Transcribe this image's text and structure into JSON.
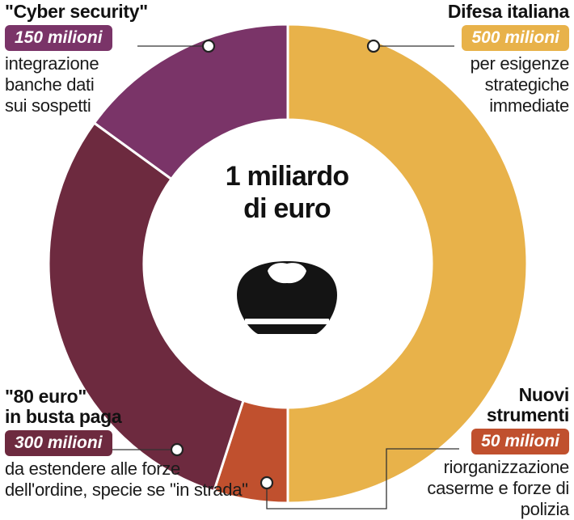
{
  "center": {
    "title_line1": "1 miliardo",
    "title_line2": "di euro",
    "icon": "police-cap-icon"
  },
  "chart_data": {
    "type": "pie",
    "style": "donut",
    "total_label": "1 miliardo di euro",
    "slices": [
      {
        "label": "Difesa italiana",
        "value": 500,
        "value_label": "500 milioni",
        "description": "per esigenze strategiche immediate",
        "color": "#e8b24a"
      },
      {
        "label": "Nuovi strumenti",
        "value": 50,
        "value_label": "50 milioni",
        "description": "riorganizzazione caserme e forze di polizia",
        "color": "#c0502e"
      },
      {
        "label": "\"80 euro\" in busta paga",
        "value": 300,
        "value_label": "300 milioni",
        "description": "da estendere alle forze dell'ordine, specie se \"in strada\"",
        "color": "#6d2a3f"
      },
      {
        "label": "\"Cyber security\"",
        "value": 150,
        "value_label": "150 milioni",
        "description": "integrazione banche dati sui sospetti",
        "color": "#7a3468"
      }
    ]
  },
  "callouts": {
    "cyber": {
      "title": "\"Cyber security\"",
      "badge": "150 milioni",
      "desc1": "integrazione",
      "desc2": "banche dati",
      "desc3": "sui sospetti"
    },
    "difesa": {
      "title": "Difesa italiana",
      "badge": "500 milioni",
      "desc1": "per esigenze",
      "desc2": "strategiche",
      "desc3": "immediate"
    },
    "ottanta": {
      "title1": "\"80 euro\"",
      "title2": "in busta paga",
      "badge": "300 milioni",
      "desc1": "da estendere alle forze",
      "desc2": "dell'ordine, specie se \"in strada\""
    },
    "nuovi": {
      "title1": "Nuovi",
      "title2": "strumenti",
      "badge": "50 milioni",
      "desc1": "riorganizzazione",
      "desc2": "caserme e forze di polizia"
    }
  }
}
